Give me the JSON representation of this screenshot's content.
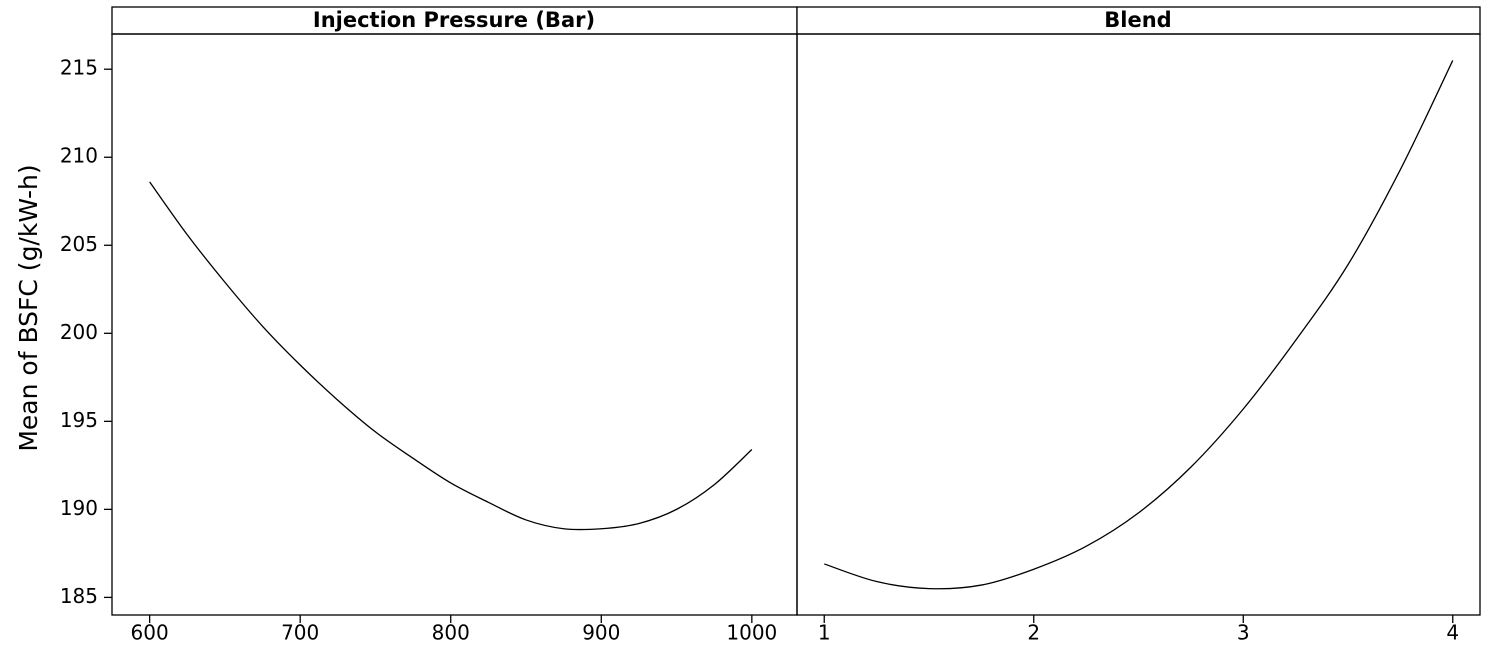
{
  "chart_data": {
    "type": "line",
    "ylabel": "Mean of BSFC (g/kW-h)",
    "ylim": [
      184,
      217
    ],
    "yticks": [
      185,
      190,
      195,
      200,
      205,
      210,
      215
    ],
    "grid": false,
    "panels": [
      {
        "title": "Injection Pressure (Bar)",
        "xlim": [
          575,
          1030
        ],
        "xticks": [
          600,
          700,
          800,
          900,
          1000
        ],
        "series": [
          {
            "x": [
              600,
              625,
              650,
              675,
              700,
              725,
              750,
              775,
              800,
              825,
              850,
              875,
              900,
              925,
              950,
              975,
              1000
            ],
            "values": [
              208.6,
              205.6,
              202.9,
              200.4,
              198.2,
              196.2,
              194.4,
              192.9,
              191.5,
              190.4,
              189.4,
              188.9,
              188.9,
              189.2,
              190.0,
              191.4,
              193.4
            ]
          }
        ]
      },
      {
        "title": "Blend",
        "xlim": [
          0.87,
          4.13
        ],
        "xticks": [
          1,
          2,
          3,
          4
        ],
        "series": [
          {
            "x": [
              1,
              1.25,
              1.5,
              1.75,
              2,
              2.25,
              2.5,
              2.75,
              3,
              3.25,
              3.5,
              3.75,
              4
            ],
            "values": [
              186.9,
              185.9,
              185.5,
              185.7,
              186.6,
              187.9,
              189.8,
              192.4,
              195.7,
              199.6,
              203.9,
              209.3,
              215.5
            ]
          }
        ]
      }
    ]
  }
}
